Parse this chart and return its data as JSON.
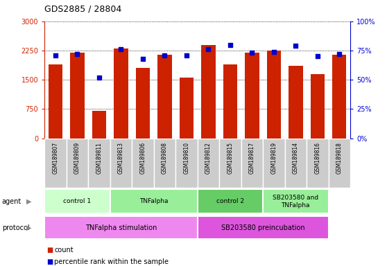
{
  "title": "GDS2885 / 28804",
  "samples": [
    "GSM189807",
    "GSM189809",
    "GSM189811",
    "GSM189813",
    "GSM189806",
    "GSM189808",
    "GSM189810",
    "GSM189812",
    "GSM189815",
    "GSM189817",
    "GSM189819",
    "GSM189814",
    "GSM189816",
    "GSM189818"
  ],
  "counts": [
    1900,
    2200,
    700,
    2300,
    1800,
    2150,
    1550,
    2400,
    1900,
    2200,
    2250,
    1850,
    1650,
    2150
  ],
  "percentiles": [
    71,
    72,
    52,
    76,
    68,
    71,
    71,
    76,
    80,
    73,
    74,
    79,
    70,
    72
  ],
  "ylim_left": [
    0,
    3000
  ],
  "ylim_right": [
    0,
    100
  ],
  "yticks_left": [
    0,
    750,
    1500,
    2250,
    3000
  ],
  "yticks_right": [
    0,
    25,
    50,
    75,
    100
  ],
  "ytick_labels_left": [
    "0",
    "750",
    "1500",
    "2250",
    "3000"
  ],
  "ytick_labels_right": [
    "0%",
    "25%",
    "50%",
    "75%",
    "100%"
  ],
  "bar_color": "#cc2200",
  "dot_color": "#0000cc",
  "agent_groups": [
    {
      "label": "control 1",
      "start": 0,
      "end": 3,
      "color": "#ccffcc"
    },
    {
      "label": "TNFalpha",
      "start": 3,
      "end": 7,
      "color": "#99ee99"
    },
    {
      "label": "control 2",
      "start": 7,
      "end": 10,
      "color": "#66cc66"
    },
    {
      "label": "SB203580 and\nTNFalpha",
      "start": 10,
      "end": 13,
      "color": "#99ee99"
    }
  ],
  "protocol_groups": [
    {
      "label": "TNFalpha stimulation",
      "start": 0,
      "end": 7,
      "color": "#ee88ee"
    },
    {
      "label": "SB203580 preincubation",
      "start": 7,
      "end": 13,
      "color": "#dd55dd"
    }
  ],
  "left_axis_color": "#cc2200",
  "right_axis_color": "#0000cc",
  "tick_bg_color": "#cccccc",
  "agent_label_color": "#777777",
  "protocol_label_color": "#777777"
}
